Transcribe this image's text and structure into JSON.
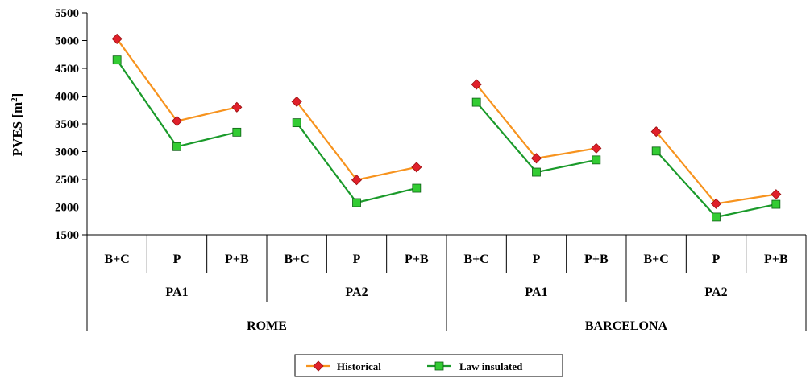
{
  "chart_data": {
    "type": "line",
    "ylabel": "PVES [m",
    "ylabel_sup": "2",
    "ylabel_end": "]",
    "ylim": [
      1500,
      5500
    ],
    "yticks": [
      1500,
      2000,
      2500,
      3000,
      3500,
      4000,
      4500,
      5000,
      5500
    ],
    "grid": false,
    "legend_position": "bottom",
    "categories": [
      "B+C",
      "P",
      "P+B",
      "B+C",
      "P",
      "P+B",
      "B+C",
      "P",
      "P+B",
      "B+C",
      "P",
      "P+B"
    ],
    "subgroups": [
      {
        "label": "PA1",
        "span": [
          0,
          2
        ]
      },
      {
        "label": "PA2",
        "span": [
          3,
          5
        ]
      },
      {
        "label": "PA1",
        "span": [
          6,
          8
        ]
      },
      {
        "label": "PA2",
        "span": [
          9,
          11
        ]
      }
    ],
    "groups": [
      {
        "label": "ROME",
        "span": [
          0,
          5
        ]
      },
      {
        "label": "BARCELONA",
        "span": [
          6,
          11
        ]
      }
    ],
    "series": [
      {
        "name": "Historical",
        "line_color": "#f7931e",
        "marker_color": "#e0202a",
        "marker": "diamond",
        "values": [
          5030,
          3550,
          3800,
          3900,
          2490,
          2720,
          4210,
          2880,
          3060,
          3360,
          2060,
          2230
        ]
      },
      {
        "name": "Law insulated",
        "line_color": "#1a9a2a",
        "marker_color": "#33cc33",
        "marker": "square",
        "values": [
          4650,
          3090,
          3350,
          3520,
          2080,
          2340,
          3890,
          2630,
          2850,
          3010,
          1820,
          2050
        ]
      }
    ]
  }
}
